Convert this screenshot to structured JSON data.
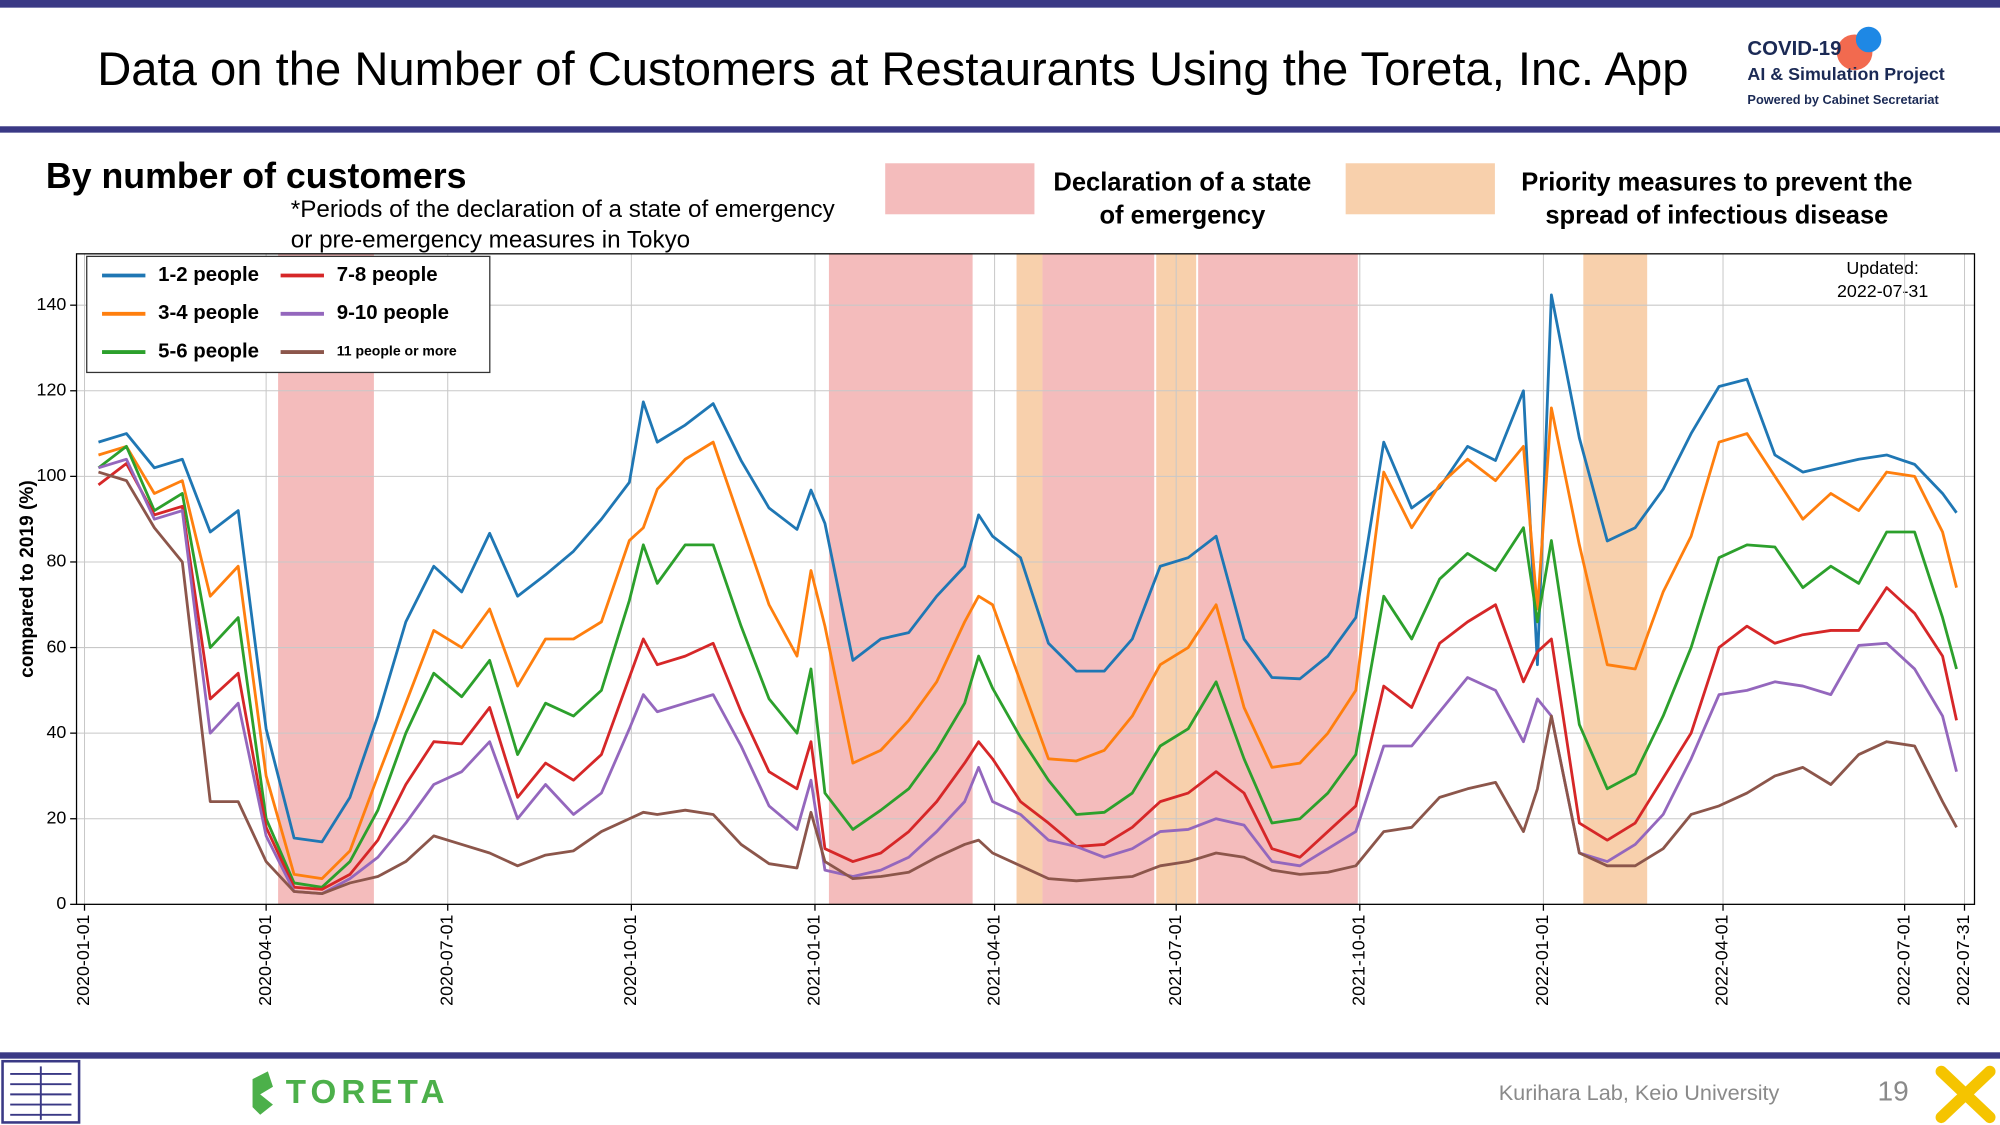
{
  "slide": {
    "title": "Data on the Number of Customers at Restaurants Using the Toreta, Inc. App",
    "subtitle": "By number of customers",
    "note": [
      "*Periods of the declaration of a state of emergency",
      "or pre-emergency measures in Tokyo"
    ],
    "logo_title": "COVID-19",
    "logo_project": "AI & Simulation Project",
    "logo_powered": "Powered by Cabinet Secretariat",
    "partner": "TORETA",
    "credit": "Kurihara Lab, Keio University",
    "page_number": "19"
  },
  "chart_data": {
    "type": "line",
    "ylabel": "compared to 2019 (%)",
    "updated": [
      "Updated:",
      "2022-07-31"
    ],
    "xlim": [
      "2019-12-28",
      "2022-08-05"
    ],
    "xticks": [
      "2020-01-01",
      "2020-04-01",
      "2020-07-01",
      "2020-10-01",
      "2021-01-01",
      "2021-04-01",
      "2021-07-01",
      "2021-10-01",
      "2022-01-01",
      "2022-04-01",
      "2022-07-01",
      "2022-07-31"
    ],
    "ylim": [
      0,
      152
    ],
    "yticks": [
      0,
      20,
      40,
      60,
      80,
      100,
      120,
      140
    ],
    "grid": true,
    "legend": "upper left",
    "shades": [
      {
        "label": [
          "Declaration of a state",
          "of emergency"
        ],
        "color": "#f4bcbc",
        "periods": [
          [
            "2020-04-07",
            "2020-05-25"
          ],
          [
            "2021-01-08",
            "2021-03-21"
          ],
          [
            "2021-04-25",
            "2021-06-20"
          ],
          [
            "2021-07-12",
            "2021-09-30"
          ]
        ]
      },
      {
        "label": [
          "Priority measures to prevent the",
          "spread of infectious disease"
        ],
        "color": "#f8d0ac",
        "periods": [
          [
            "2021-04-12",
            "2021-04-25"
          ],
          [
            "2021-06-21",
            "2021-07-11"
          ],
          [
            "2022-01-21",
            "2022-02-22"
          ]
        ]
      }
    ],
    "x": [
      "2020-01-08",
      "2020-01-22",
      "2020-02-05",
      "2020-02-19",
      "2020-03-04",
      "2020-03-18",
      "2020-04-01",
      "2020-04-15",
      "2020-04-29",
      "2020-05-13",
      "2020-05-27",
      "2020-06-10",
      "2020-06-24",
      "2020-07-08",
      "2020-07-22",
      "2020-08-05",
      "2020-08-19",
      "2020-09-02",
      "2020-09-16",
      "2020-09-30",
      "2020-10-07",
      "2020-10-14",
      "2020-10-28",
      "2020-11-11",
      "2020-11-25",
      "2020-12-09",
      "2020-12-23",
      "2020-12-30",
      "2021-01-06",
      "2021-01-20",
      "2021-02-03",
      "2021-02-17",
      "2021-03-03",
      "2021-03-17",
      "2021-03-24",
      "2021-03-31",
      "2021-04-14",
      "2021-04-28",
      "2021-05-12",
      "2021-05-26",
      "2021-06-09",
      "2021-06-23",
      "2021-07-07",
      "2021-07-21",
      "2021-08-04",
      "2021-08-18",
      "2021-09-01",
      "2021-09-15",
      "2021-09-29",
      "2021-10-13",
      "2021-10-27",
      "2021-11-10",
      "2021-11-24",
      "2021-12-08",
      "2021-12-22",
      "2021-12-29",
      "2022-01-05",
      "2022-01-19",
      "2022-02-02",
      "2022-02-16",
      "2022-03-02",
      "2022-03-16",
      "2022-03-30",
      "2022-04-13",
      "2022-04-27",
      "2022-05-11",
      "2022-05-25",
      "2022-06-08",
      "2022-06-22",
      "2022-07-06",
      "2022-07-20",
      "2022-07-27"
    ],
    "series": [
      {
        "name": "1-2 people",
        "color": "#1f77b4",
        "values": [
          108,
          110,
          102,
          104,
          87,
          92,
          41,
          15.5,
          14.6,
          25,
          44,
          66,
          79,
          73,
          86.7,
          72,
          77,
          82.5,
          90,
          98.6,
          117.4,
          108,
          112,
          117,
          103.7,
          92.6,
          87.6,
          96.8,
          89,
          57,
          62,
          63.5,
          72,
          79,
          91,
          86,
          81,
          61,
          54.5,
          54.5,
          62,
          79,
          81,
          86,
          62,
          53,
          52.7,
          58,
          67,
          108,
          92.6,
          97.4,
          107,
          103.7,
          120,
          56,
          142.4,
          109,
          84.9,
          88,
          97,
          110,
          121,
          122.7,
          105,
          101,
          102.5,
          104,
          105,
          102.8,
          96,
          91.5
        ]
      },
      {
        "name": "3-4 people",
        "color": "#ff7f0e",
        "values": [
          105,
          107,
          96,
          99,
          72,
          79,
          30,
          7,
          6,
          12.5,
          30,
          47,
          64,
          60,
          69,
          51,
          62,
          62,
          66,
          85,
          88,
          97,
          104,
          108,
          89,
          70,
          58,
          78,
          65,
          33,
          36,
          43,
          52,
          66,
          72,
          70,
          52,
          34,
          33.5,
          36,
          44,
          56,
          60,
          70,
          46,
          32,
          33,
          40,
          50,
          101,
          88,
          98,
          104,
          99,
          107,
          69,
          116,
          84,
          56,
          55,
          73,
          86,
          108,
          110,
          100,
          90,
          96,
          92,
          101,
          100,
          87,
          74
        ]
      },
      {
        "name": "5-6 people",
        "color": "#2ca02c",
        "values": [
          102,
          107,
          92,
          96,
          60,
          67,
          20,
          5,
          4,
          10,
          22,
          40,
          54,
          48.5,
          57,
          35,
          47,
          44,
          50,
          71,
          84,
          75,
          84,
          84,
          65,
          48,
          40,
          55,
          26,
          17.5,
          22,
          27,
          36,
          47,
          58,
          50.5,
          39,
          29,
          21,
          21.5,
          26,
          37,
          41,
          52,
          34,
          19,
          20,
          26,
          35,
          72,
          62,
          76,
          82,
          78,
          88,
          66,
          85,
          42,
          27,
          30.5,
          44,
          60,
          81,
          84,
          83.5,
          74,
          79,
          75,
          87,
          87,
          67,
          55
        ]
      },
      {
        "name": "7-8 people",
        "color": "#d62728",
        "values": [
          98,
          103,
          91,
          93,
          48,
          54,
          18,
          4,
          3.5,
          7,
          15,
          28,
          38,
          37.5,
          46,
          25,
          33,
          29,
          35,
          53,
          62,
          56,
          58,
          61,
          45,
          31,
          27,
          38,
          13,
          10,
          12,
          17,
          24,
          33,
          38,
          34,
          24,
          19,
          13.5,
          14,
          18,
          24,
          26,
          31,
          26,
          13,
          11,
          17,
          23,
          51,
          46,
          61,
          66,
          70,
          52,
          59,
          62,
          19,
          15,
          19,
          29.5,
          40,
          60,
          65,
          61,
          63,
          64,
          64,
          74,
          68,
          58,
          43
        ]
      },
      {
        "name": "9-10 people",
        "color": "#9467bd",
        "values": [
          102,
          104,
          90,
          92,
          40,
          47,
          16,
          3,
          2.5,
          6,
          11,
          19,
          28,
          31,
          38,
          20,
          28,
          21,
          26,
          41,
          49,
          45,
          47,
          49,
          37,
          23,
          17.5,
          29,
          8,
          6.5,
          8,
          11,
          17,
          24,
          32,
          24,
          21,
          15,
          13.5,
          11,
          13,
          17,
          17.5,
          20,
          18.5,
          10,
          9,
          13,
          17,
          37,
          37,
          45,
          53,
          50,
          38,
          48,
          44,
          12,
          10,
          14,
          21,
          34,
          49,
          50,
          52,
          51,
          49,
          60.5,
          61,
          55,
          44,
          31
        ]
      },
      {
        "name": "11 people or more",
        "color": "#8c564b",
        "values": [
          101,
          99,
          88,
          80,
          24,
          24,
          10,
          3,
          2.5,
          5,
          6.5,
          10,
          16,
          14,
          12,
          9,
          11.5,
          12.5,
          17,
          20,
          21.5,
          21,
          22,
          21,
          14,
          9.5,
          8.5,
          21.5,
          10,
          6,
          6.5,
          7.5,
          11,
          14,
          15,
          12,
          9,
          6,
          5.5,
          6,
          6.5,
          9,
          10,
          12,
          11,
          8,
          7,
          7.5,
          9,
          17,
          18,
          25,
          27,
          28.5,
          17,
          27,
          44,
          12,
          9,
          9,
          13,
          21,
          23,
          26,
          30,
          32,
          28,
          35,
          38,
          37,
          24,
          18
        ]
      }
    ]
  }
}
